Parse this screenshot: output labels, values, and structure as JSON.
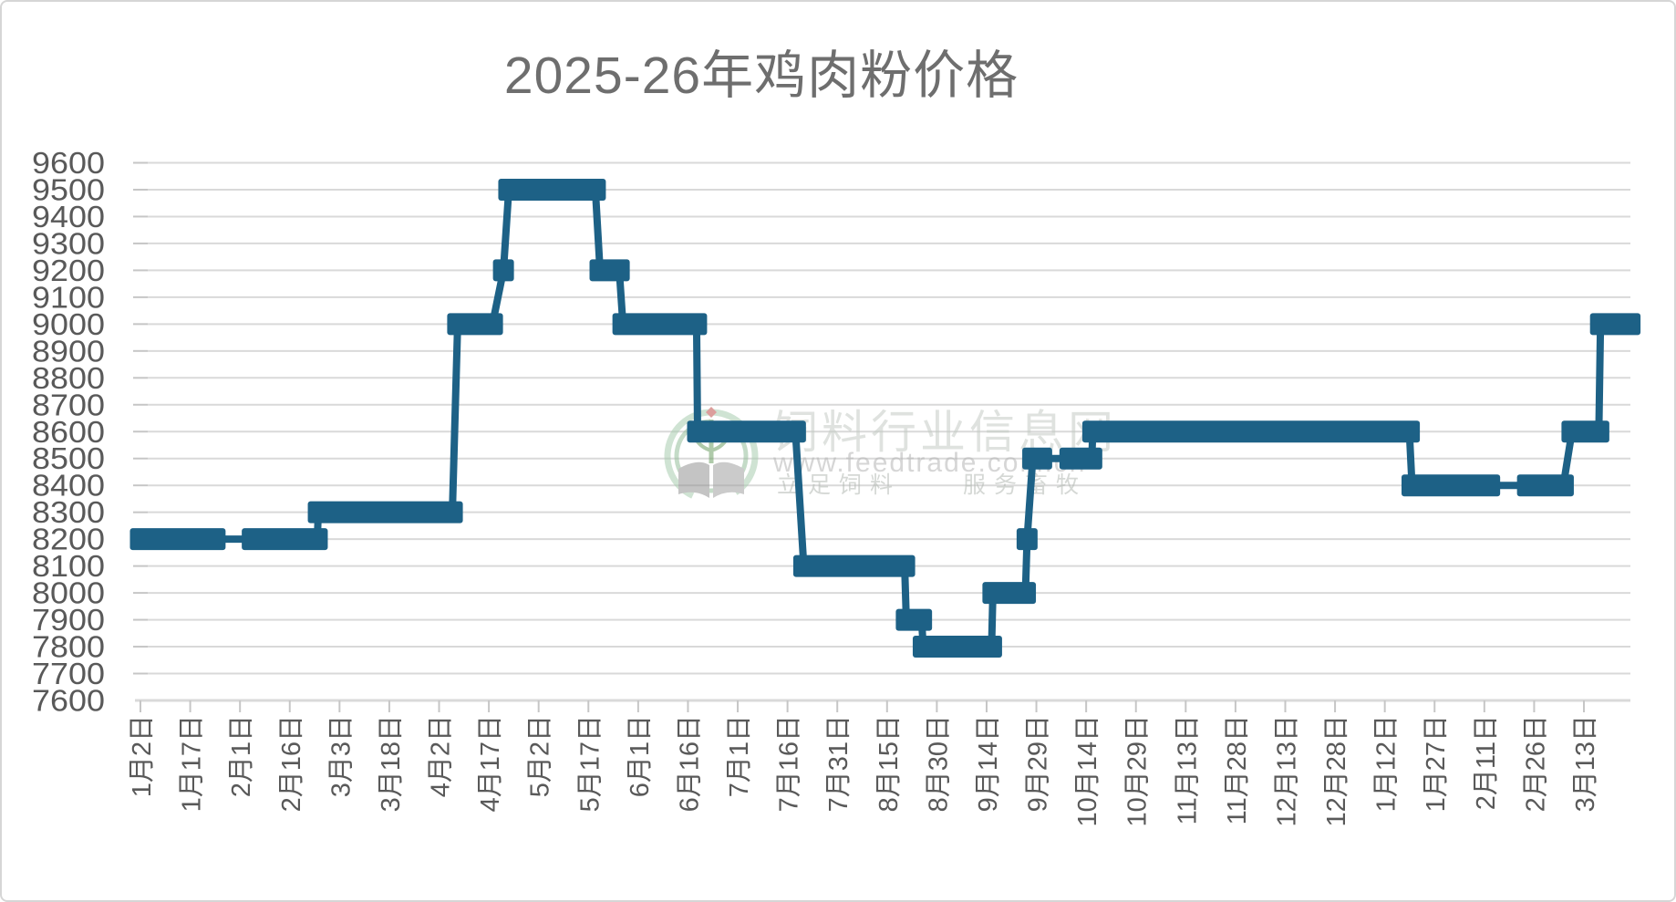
{
  "title": "2025-26年鸡肉粉价格",
  "watermark": {
    "site_name": "饲料行业信息网",
    "url": "www.feedtrade.com.cn",
    "slogan": "立足饲料　　服务畜牧"
  },
  "chart_data": {
    "type": "line",
    "subtype": "step-line-with-thick-merged-markers",
    "title": "2025-26年鸡肉粉价格",
    "series_name": "鸡肉粉价格",
    "line_color": "#1d6186",
    "grid": true,
    "gridline_color": "#d9d9d9",
    "axis_label_color": "#595959",
    "ylim": [
      7600,
      9600
    ],
    "y_tick_step": 100,
    "x_axis_start_label": "1月2日",
    "x_label_interval_days": 15,
    "x_tick_labels": [
      "1月2日",
      "1月17日",
      "2月1日",
      "2月16日",
      "3月3日",
      "3月18日",
      "4月2日",
      "4月17日",
      "5月2日",
      "5月17日",
      "6月1日",
      "6月16日",
      "7月1日",
      "7月16日",
      "7月31日",
      "8月15日",
      "8月30日",
      "9月14日",
      "9月29日",
      "10月14日",
      "10月29日",
      "11月13日",
      "11月28日",
      "12月13日",
      "12月28日",
      "1月12日",
      "1月27日",
      "2月11日",
      "2月26日",
      "3月13日"
    ],
    "segments": [
      {
        "value": 8200,
        "start": "1月2日",
        "end": "1月24日",
        "start_day": 0,
        "end_day": 22.5
      },
      {
        "value": 8200,
        "start": "2月5日",
        "end": "2月24日",
        "start_day": 33.7,
        "end_day": 53.3
      },
      {
        "value": 8300,
        "start": "2月25日",
        "end": "4月6日",
        "start_day": 53.6,
        "end_day": 94.0
      },
      {
        "value": 9000,
        "start": "4月8日",
        "end": "4月18日",
        "start_day": 95.6,
        "end_day": 106.1
      },
      {
        "value": 9200,
        "start": "4月21日",
        "end": "4月21日",
        "start_day": 109.4,
        "end_day": 109.4
      },
      {
        "value": 9500,
        "start": "4月23日",
        "end": "5月19日",
        "start_day": 111.0,
        "end_day": 137.1
      },
      {
        "value": 9200,
        "start": "5月20日",
        "end": "5月26日",
        "start_day": 138.5,
        "end_day": 144.3
      },
      {
        "value": 9000,
        "start": "5月27日",
        "end": "6月18日",
        "start_day": 145.4,
        "end_day": 167.6
      },
      {
        "value": 8600,
        "start": "6月19日",
        "end": "7月18日",
        "start_day": 167.9,
        "end_day": 197.4
      },
      {
        "value": 8100,
        "start": "7月21日",
        "end": "8月20日",
        "start_day": 199.9,
        "end_day": 230.3
      },
      {
        "value": 7900,
        "start": "8月21日",
        "end": "8月25日",
        "start_day": 230.8,
        "end_day": 235.4
      },
      {
        "value": 7800,
        "start": "8月26日",
        "end": "9月15日",
        "start_day": 235.9,
        "end_day": 256.5
      },
      {
        "value": 8000,
        "start": "9月16日",
        "end": "9月25日",
        "start_day": 256.9,
        "end_day": 266.7
      },
      {
        "value": 8200,
        "start": "9月26日",
        "end": "9月26日",
        "start_day": 267.2,
        "end_day": 267.2
      },
      {
        "value": 8500,
        "start": "9月28日",
        "end": "10月1日",
        "start_day": 268.9,
        "end_day": 271.6
      },
      {
        "value": 8500,
        "start": "10月9日",
        "end": "10月15日",
        "start_day": 280.1,
        "end_day": 286.7
      },
      {
        "value": 8600,
        "start": "10月16日",
        "end": "1月19日",
        "start_day": 287.0,
        "end_day": 382.4
      },
      {
        "value": 8400,
        "start": "1月20日",
        "end": "2月12日",
        "start_day": 383.2,
        "end_day": 406.6
      },
      {
        "value": 8400,
        "start": "2月24日",
        "end": "3月6日",
        "start_day": 418.0,
        "end_day": 428.8
      },
      {
        "value": 8600,
        "start": "3月9日",
        "end": "3月17日",
        "start_day": 431.4,
        "end_day": 439.5
      },
      {
        "value": 9000,
        "start": "3月18日",
        "end": "3月27日",
        "start_day": 440.0,
        "end_day": 448.9
      }
    ]
  }
}
